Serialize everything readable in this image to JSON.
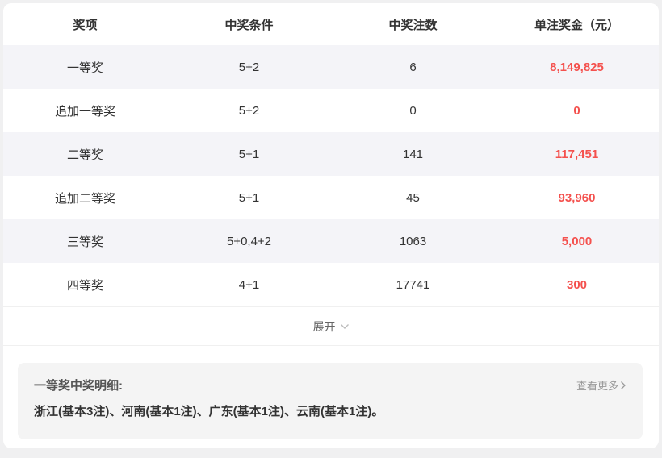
{
  "table": {
    "headers": [
      "奖项",
      "中奖条件",
      "中奖注数",
      "单注奖金（元）"
    ],
    "rows": [
      {
        "prize": "一等奖",
        "condition": "5+2",
        "count": "6",
        "amount": "8,149,825"
      },
      {
        "prize": "追加一等奖",
        "condition": "5+2",
        "count": "0",
        "amount": "0"
      },
      {
        "prize": "二等奖",
        "condition": "5+1",
        "count": "141",
        "amount": "117,451"
      },
      {
        "prize": "追加二等奖",
        "condition": "5+1",
        "count": "45",
        "amount": "93,960"
      },
      {
        "prize": "三等奖",
        "condition": "5+0,4+2",
        "count": "1063",
        "amount": "5,000"
      },
      {
        "prize": "四等奖",
        "condition": "4+1",
        "count": "17741",
        "amount": "300"
      }
    ],
    "expand_label": "展开"
  },
  "details": {
    "title": "一等奖中奖明细:",
    "more_label": "查看更多",
    "body": "浙江(基本3注)、河南(基本1注)、广东(基本1注)、云南(基本1注)。"
  },
  "colors": {
    "amount_red": "#f4514e",
    "stripe_bg": "#f4f4f8",
    "detail_box_bg": "#f4f4f4"
  }
}
